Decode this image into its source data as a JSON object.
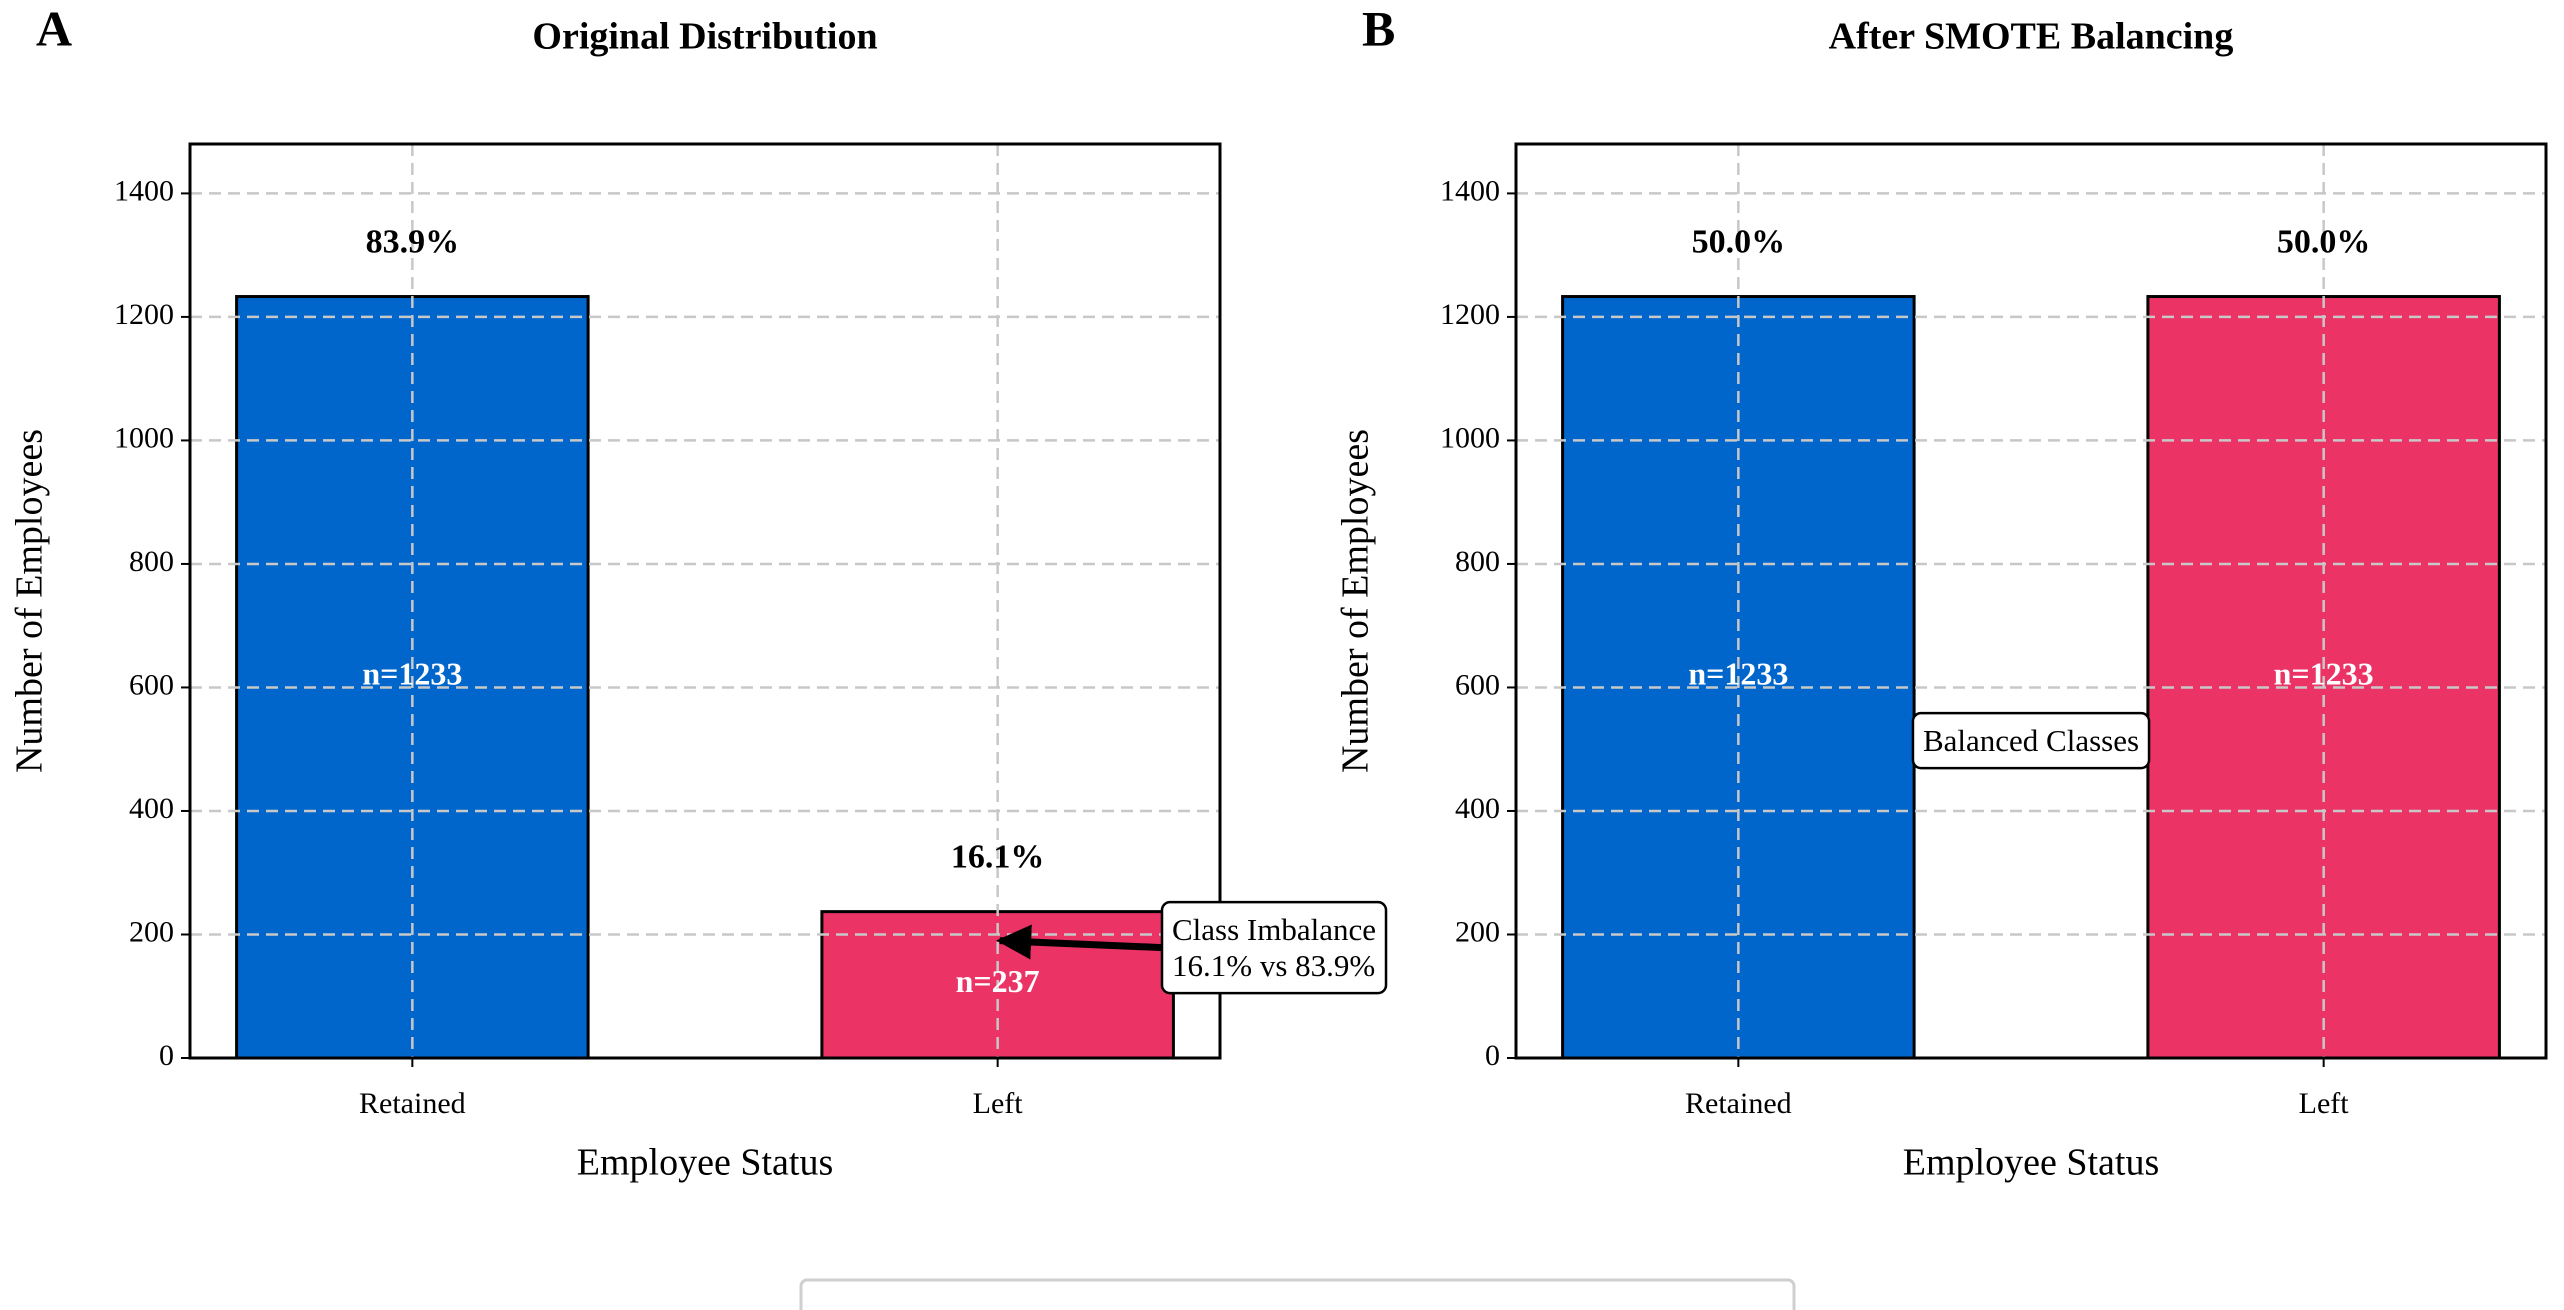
{
  "chart_data": [
    {
      "type": "bar",
      "panel": "A",
      "title": "Original Distribution",
      "xlabel": "Employee Status",
      "ylabel": "Number of Employees",
      "categories": [
        "Retained",
        "Left"
      ],
      "values": [
        1233,
        237
      ],
      "value_labels": [
        "n=1233",
        "n=237"
      ],
      "colors": [
        "#0066cc",
        "#eb3366"
      ],
      "share_labels": [
        "83.9%",
        "16.1%"
      ],
      "annotation": [
        "Class Imbalance",
        "16.1% vs 83.9%"
      ],
      "ylim": [
        0,
        1480
      ],
      "yticks": [
        0,
        200,
        400,
        600,
        800,
        1000,
        1200,
        1400
      ],
      "grid": true
    },
    {
      "type": "bar",
      "panel": "B",
      "title": "After SMOTE Balancing",
      "xlabel": "Employee Status",
      "ylabel": "Number of Employees",
      "categories": [
        "Retained",
        "Left"
      ],
      "values": [
        1233,
        1233
      ],
      "value_labels": [
        "n=1233",
        "n=1233"
      ],
      "colors": [
        "#0066cc",
        "#eb3366"
      ],
      "share_labels": [
        "50.0%",
        "50.0%"
      ],
      "annotation": [
        "Balanced Classes"
      ],
      "ylim": [
        0,
        1480
      ],
      "yticks": [
        0,
        200,
        400,
        600,
        800,
        1000,
        1200,
        1400
      ],
      "grid": true
    }
  ]
}
